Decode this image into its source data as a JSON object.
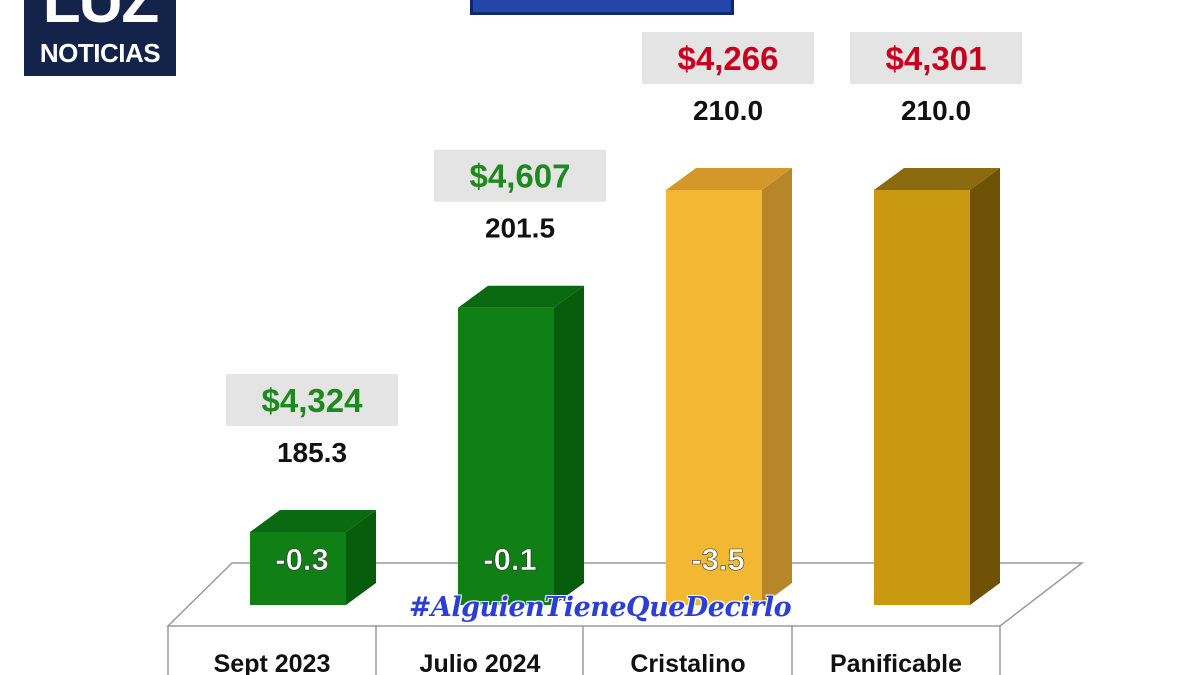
{
  "logo": {
    "top": "LUZ",
    "bottom": "NOTICIAS"
  },
  "hashtag": "#AlguienTieneQueDecirlo",
  "colors": {
    "green_price": "#1e8a1e",
    "red_price": "#c8001e",
    "green_bar": "#0f7f16",
    "yellow_bar": "#f3b832",
    "gold_bar": "#c9990f",
    "label_bg": "#e4e4e4"
  },
  "chart_data": {
    "type": "bar",
    "categories": [
      "Sept 2023",
      "Julio 2024",
      "Cristalino",
      "Panificable"
    ],
    "values": [
      185.3,
      201.5,
      210.0,
      210.0
    ],
    "value_labels": [
      "185.3",
      "201.5",
      "210.0",
      "210.0"
    ],
    "prices": [
      "$4,324",
      "$4,607",
      "$4,266",
      "$4,301"
    ],
    "changes": [
      "-0.3",
      "-0.1",
      "-3.5",
      ""
    ],
    "bar_colors": [
      "green",
      "green",
      "yellow",
      "gold"
    ],
    "price_colors": [
      "green",
      "green",
      "red",
      "red"
    ]
  }
}
